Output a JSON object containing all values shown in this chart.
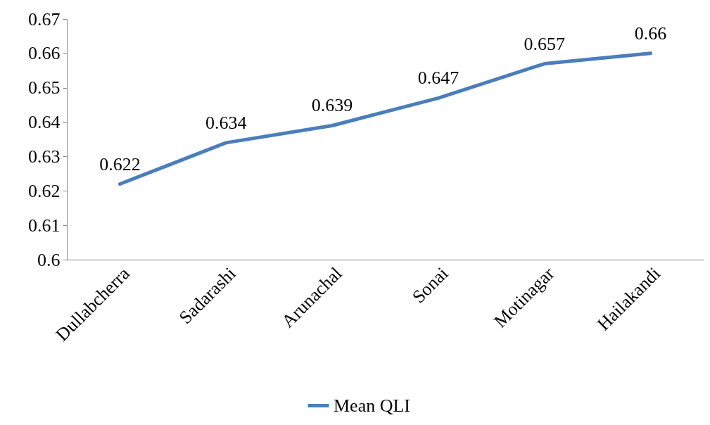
{
  "chart_data": {
    "type": "line",
    "categories": [
      "Dullabcherra",
      "Sadarashi",
      "Arunachal",
      "Sonai",
      "Motinagar",
      "Hailakandi"
    ],
    "series": [
      {
        "name": "Mean QLI",
        "color": "#4a7ebb",
        "values": [
          0.622,
          0.634,
          0.639,
          0.647,
          0.657,
          0.66
        ]
      }
    ],
    "ylim": [
      0.6,
      0.67
    ],
    "yticks": [
      0.6,
      0.61,
      0.62,
      0.63,
      0.64,
      0.65,
      0.66,
      0.67
    ],
    "data_labels": true,
    "legend": "bottom"
  }
}
